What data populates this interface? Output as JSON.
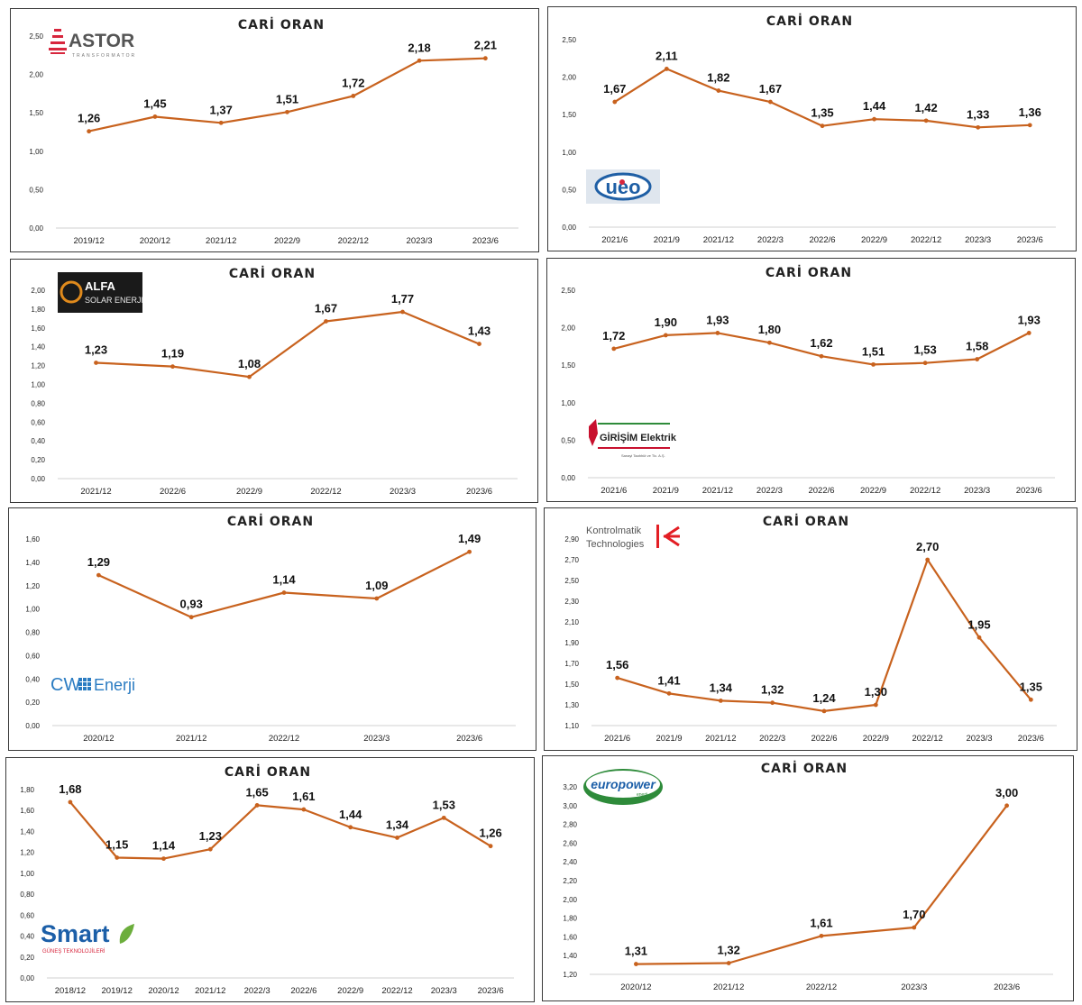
{
  "colors": {
    "line": "#c8621e",
    "axis": "#d0d0d0",
    "text": "#222222"
  },
  "chart_data": [
    {
      "type": "line",
      "title": "CARİ ORAN",
      "logo": {
        "icon": "astor-logo",
        "text": "ASTOR",
        "sub": "TRANSFORMATOR"
      },
      "categories": [
        "2019/12",
        "2020/12",
        "2021/12",
        "2022/9",
        "2022/12",
        "2023/3",
        "2023/6"
      ],
      "values": [
        1.26,
        1.45,
        1.37,
        1.51,
        1.72,
        2.18,
        2.21
      ],
      "labels": [
        "1,26",
        "1,45",
        "1,37",
        "1,51",
        "1,72",
        "2,18",
        "2,21"
      ],
      "yticks": [
        "0,00",
        "0,50",
        "1,00",
        "1,50",
        "2,00",
        "2,50"
      ],
      "ylim": [
        0,
        2.5
      ]
    },
    {
      "type": "line",
      "title": "CARİ ORAN",
      "logo": {
        "icon": "ueo-logo",
        "text": "ueo"
      },
      "categories": [
        "2021/6",
        "2021/9",
        "2021/12",
        "2022/3",
        "2022/6",
        "2022/9",
        "2022/12",
        "2023/3",
        "2023/6"
      ],
      "values": [
        1.67,
        2.11,
        1.82,
        1.67,
        1.35,
        1.44,
        1.42,
        1.33,
        1.36
      ],
      "labels": [
        "1,67",
        "2,11",
        "1,82",
        "1,67",
        "1,35",
        "1,44",
        "1,42",
        "1,33",
        "1,36"
      ],
      "yticks": [
        "0,00",
        "0,50",
        "1,00",
        "1,50",
        "2,00",
        "2,50"
      ],
      "ylim": [
        0,
        2.5
      ]
    },
    {
      "type": "line",
      "title": "CARİ ORAN",
      "logo": {
        "icon": "alfa-solar-logo",
        "text": "ALFA",
        "sub": "SOLAR ENERJI"
      },
      "categories": [
        "2021/12",
        "2022/6",
        "2022/9",
        "2022/12",
        "2023/3",
        "2023/6"
      ],
      "values": [
        1.23,
        1.19,
        1.08,
        1.67,
        1.77,
        1.43
      ],
      "labels": [
        "1,23",
        "1,19",
        "1,08",
        "1,67",
        "1,77",
        "1,43"
      ],
      "yticks": [
        "0,00",
        "0,20",
        "0,40",
        "0,60",
        "0,80",
        "1,00",
        "1,20",
        "1,40",
        "1,60",
        "1,80",
        "2,00"
      ],
      "ylim": [
        0,
        2.0
      ]
    },
    {
      "type": "line",
      "title": "CARİ ORAN",
      "logo": {
        "icon": "girisim-logo",
        "text": "GİRİŞİM Elektrik",
        "sub": "Sanayi Taahhüt ve Tic. A.Ş."
      },
      "categories": [
        "2021/6",
        "2021/9",
        "2021/12",
        "2022/3",
        "2022/6",
        "2022/9",
        "2022/12",
        "2023/3",
        "2023/6"
      ],
      "values": [
        1.72,
        1.9,
        1.93,
        1.8,
        1.62,
        1.51,
        1.53,
        1.58,
        1.93
      ],
      "labels": [
        "1,72",
        "1,90",
        "1,93",
        "1,80",
        "1,62",
        "1,51",
        "1,53",
        "1,58",
        "1,93"
      ],
      "yticks": [
        "0,00",
        "0,50",
        "1,00",
        "1,50",
        "2,00",
        "2,50"
      ],
      "ylim": [
        0,
        2.5
      ]
    },
    {
      "type": "line",
      "title": "CARİ ORAN",
      "logo": {
        "icon": "cw-enerji-logo",
        "text": "CW",
        "sub": "Enerji"
      },
      "categories": [
        "2020/12",
        "2021/12",
        "2022/12",
        "2023/3",
        "2023/6"
      ],
      "values": [
        1.29,
        0.93,
        1.14,
        1.09,
        1.49
      ],
      "labels": [
        "1,29",
        "0,93",
        "1,14",
        "1,09",
        "1,49"
      ],
      "yticks": [
        "0,00",
        "0,20",
        "0,40",
        "0,60",
        "0,80",
        "1,00",
        "1,20",
        "1,40",
        "1,60"
      ],
      "ylim": [
        0,
        1.6
      ]
    },
    {
      "type": "line",
      "title": "CARİ ORAN",
      "logo": {
        "icon": "kontrolmatik-logo",
        "text": "Kontrolmatik",
        "sub": "Technologies"
      },
      "categories": [
        "2021/6",
        "2021/9",
        "2021/12",
        "2022/3",
        "2022/6",
        "2022/9",
        "2022/12",
        "2023/3",
        "2023/6"
      ],
      "values": [
        1.56,
        1.41,
        1.34,
        1.32,
        1.24,
        1.3,
        2.7,
        1.95,
        1.35
      ],
      "labels": [
        "1,56",
        "1,41",
        "1,34",
        "1,32",
        "1,24",
        "1,30",
        "2,70",
        "1,95",
        "1,35"
      ],
      "yticks": [
        "1,10",
        "1,30",
        "1,50",
        "1,70",
        "1,90",
        "2,10",
        "2,30",
        "2,50",
        "2,70",
        "2,90"
      ],
      "ylim": [
        1.1,
        2.9
      ]
    },
    {
      "type": "line",
      "title": "CARİ ORAN",
      "logo": {
        "icon": "smart-logo",
        "text": "Smart",
        "sub": "GÜNEŞ TEKNOLOJİLERİ"
      },
      "categories": [
        "2018/12",
        "2019/12",
        "2020/12",
        "2021/12",
        "2022/3",
        "2022/6",
        "2022/9",
        "2022/12",
        "2023/3",
        "2023/6"
      ],
      "values": [
        1.68,
        1.15,
        1.14,
        1.23,
        1.65,
        1.61,
        1.44,
        1.34,
        1.53,
        1.26
      ],
      "labels": [
        "1,68",
        "1,15",
        "1,14",
        "1,23",
        "1,65",
        "1,61",
        "1,44",
        "1,34",
        "1,53",
        "1,26"
      ],
      "yticks": [
        "0,00",
        "0,20",
        "0,40",
        "0,60",
        "0,80",
        "1,00",
        "1,20",
        "1,40",
        "1,60",
        "1,80"
      ],
      "ylim": [
        0,
        1.8
      ]
    },
    {
      "type": "line",
      "title": "CARİ ORAN",
      "logo": {
        "icon": "europower-logo",
        "text": "europower",
        "sub": "enerji"
      },
      "categories": [
        "2020/12",
        "2021/12",
        "2022/12",
        "2023/3",
        "2023/6"
      ],
      "values": [
        1.31,
        1.32,
        1.61,
        1.7,
        3.0
      ],
      "labels": [
        "1,31",
        "1,32",
        "1,61",
        "1,70",
        "3,00"
      ],
      "yticks": [
        "1,20",
        "1,40",
        "1,60",
        "1,80",
        "2,00",
        "2,20",
        "2,40",
        "2,60",
        "2,80",
        "3,00",
        "3,20"
      ],
      "ylim": [
        1.2,
        3.2
      ]
    }
  ]
}
